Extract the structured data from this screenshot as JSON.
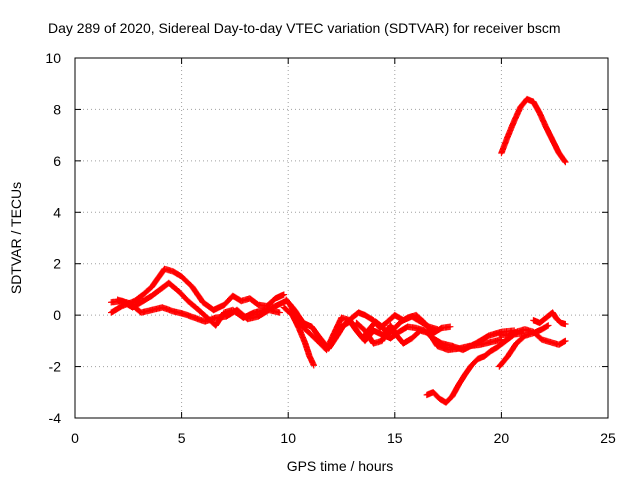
{
  "chart_data": {
    "type": "scatter",
    "title": "Day 289 of 2020, Sidereal Day-to-day VTEC variation (SDTVAR) for receiver bscm",
    "xlabel": "GPS time / hours",
    "ylabel": "SDTVAR / TECUs",
    "xlim": [
      0,
      25
    ],
    "ylim": [
      -4,
      10
    ],
    "grid": true,
    "xticks": [
      0,
      5,
      10,
      15,
      20,
      25
    ],
    "xtick_labels": [
      "0",
      "5",
      "10",
      "15",
      "20",
      "25"
    ],
    "yticks": [
      -4,
      -2,
      0,
      2,
      4,
      6,
      8,
      10
    ],
    "ytick_labels": [
      "-4",
      "-2",
      "0",
      "2",
      "4",
      "6",
      "8",
      "10"
    ],
    "marker": "+",
    "color": "#ff0000",
    "series": [
      {
        "name": "track-1",
        "points": [
          [
            1.7,
            0.1
          ],
          [
            2.2,
            0.35
          ],
          [
            2.8,
            0.55
          ],
          [
            3.2,
            0.8
          ],
          [
            3.6,
            1.1
          ],
          [
            3.9,
            1.45
          ],
          [
            4.2,
            1.8
          ],
          [
            4.6,
            1.7
          ],
          [
            5.0,
            1.5
          ],
          [
            5.5,
            1.1
          ],
          [
            6.0,
            0.5
          ],
          [
            6.5,
            0.2
          ],
          [
            7.0,
            0.4
          ],
          [
            7.4,
            0.75
          ],
          [
            7.8,
            0.55
          ],
          [
            8.2,
            0.65
          ],
          [
            8.6,
            0.4
          ],
          [
            9.0,
            0.35
          ],
          [
            9.4,
            0.65
          ],
          [
            9.8,
            0.8
          ]
        ]
      },
      {
        "name": "track-2",
        "points": [
          [
            1.7,
            0.5
          ],
          [
            2.2,
            0.55
          ],
          [
            2.7,
            0.3
          ],
          [
            3.2,
            0.55
          ],
          [
            3.6,
            0.75
          ],
          [
            4.0,
            1.0
          ],
          [
            4.4,
            1.25
          ],
          [
            4.9,
            0.9
          ],
          [
            5.3,
            0.55
          ],
          [
            5.8,
            0.2
          ],
          [
            6.2,
            -0.1
          ],
          [
            6.6,
            -0.4
          ],
          [
            7.0,
            0.1
          ],
          [
            7.4,
            0.2
          ],
          [
            7.9,
            -0.1
          ],
          [
            8.4,
            0.1
          ],
          [
            8.9,
            0.2
          ],
          [
            9.4,
            0.35
          ],
          [
            9.9,
            0.55
          ]
        ]
      },
      {
        "name": "track-3",
        "points": [
          [
            2.0,
            0.6
          ],
          [
            2.6,
            0.45
          ],
          [
            3.1,
            0.1
          ],
          [
            3.6,
            0.2
          ],
          [
            4.1,
            0.3
          ],
          [
            4.6,
            0.15
          ],
          [
            5.1,
            0.05
          ],
          [
            5.6,
            -0.1
          ],
          [
            6.1,
            -0.25
          ],
          [
            6.6,
            -0.1
          ],
          [
            7.1,
            -0.05
          ],
          [
            7.6,
            0.2
          ],
          [
            8.1,
            -0.15
          ],
          [
            8.6,
            -0.05
          ],
          [
            9.1,
            0.2
          ],
          [
            9.6,
            0.1
          ]
        ]
      },
      {
        "name": "track-4",
        "points": [
          [
            9.8,
            0.3
          ],
          [
            10.2,
            0.0
          ],
          [
            10.5,
            -0.5
          ],
          [
            10.8,
            -1.1
          ],
          [
            11.0,
            -1.6
          ],
          [
            11.2,
            -1.95
          ]
        ]
      },
      {
        "name": "track-5",
        "points": [
          [
            9.9,
            0.6
          ],
          [
            10.3,
            0.2
          ],
          [
            10.7,
            -0.3
          ],
          [
            11.1,
            -0.45
          ],
          [
            11.5,
            -0.9
          ],
          [
            11.9,
            -1.3
          ],
          [
            12.3,
            -0.8
          ],
          [
            12.6,
            -0.4
          ],
          [
            12.9,
            -0.25
          ],
          [
            13.2,
            -0.6
          ],
          [
            13.5,
            -0.9
          ],
          [
            13.8,
            -0.55
          ],
          [
            14.1,
            -0.25
          ],
          [
            14.4,
            -0.45
          ],
          [
            14.7,
            -0.75
          ],
          [
            15.0,
            -0.5
          ],
          [
            15.3,
            -0.25
          ],
          [
            15.6,
            -0.1
          ],
          [
            16.0,
            0.0
          ],
          [
            16.4,
            -0.3
          ],
          [
            16.8,
            -0.7
          ],
          [
            17.2,
            -0.5
          ],
          [
            17.6,
            -0.45
          ]
        ]
      },
      {
        "name": "track-6",
        "points": [
          [
            10.1,
            0.4
          ],
          [
            10.6,
            -0.4
          ],
          [
            11.0,
            -0.7
          ],
          [
            11.5,
            -1.1
          ],
          [
            11.8,
            -1.35
          ],
          [
            12.1,
            -0.8
          ],
          [
            12.5,
            -0.1
          ],
          [
            12.9,
            -0.2
          ],
          [
            13.3,
            -0.7
          ],
          [
            13.6,
            -1.0
          ],
          [
            14.0,
            -0.6
          ],
          [
            14.4,
            -0.75
          ],
          [
            14.8,
            -0.9
          ],
          [
            15.2,
            -0.65
          ],
          [
            15.6,
            -0.45
          ],
          [
            16.0,
            -0.5
          ],
          [
            16.4,
            -0.6
          ],
          [
            16.8,
            -0.9
          ],
          [
            17.2,
            -1.1
          ],
          [
            17.7,
            -1.2
          ],
          [
            18.2,
            -1.35
          ],
          [
            18.8,
            -1.1
          ],
          [
            19.4,
            -0.8
          ],
          [
            20.0,
            -0.65
          ],
          [
            20.6,
            -0.6
          ]
        ]
      },
      {
        "name": "track-7",
        "points": [
          [
            12.0,
            -1.1
          ],
          [
            12.3,
            -0.6
          ],
          [
            12.6,
            -0.4
          ],
          [
            13.0,
            -0.1
          ],
          [
            13.3,
            0.1
          ],
          [
            13.6,
            0.0
          ],
          [
            14.0,
            -0.2
          ],
          [
            14.3,
            -0.5
          ],
          [
            14.6,
            -0.3
          ],
          [
            15.0,
            0.0
          ],
          [
            15.4,
            -0.2
          ],
          [
            15.8,
            -0.05
          ],
          [
            16.2,
            -0.25
          ],
          [
            16.6,
            -0.45
          ],
          [
            17.0,
            -0.55
          ]
        ]
      },
      {
        "name": "track-8",
        "points": [
          [
            13.2,
            -0.3
          ],
          [
            13.6,
            -0.6
          ],
          [
            14.0,
            -1.1
          ],
          [
            14.4,
            -1.0
          ],
          [
            14.8,
            -0.4
          ],
          [
            15.1,
            -0.8
          ],
          [
            15.4,
            -1.1
          ],
          [
            15.8,
            -0.9
          ],
          [
            16.2,
            -0.6
          ],
          [
            16.6,
            -0.7
          ],
          [
            17.0,
            -1.2
          ],
          [
            17.5,
            -1.35
          ],
          [
            18.0,
            -1.3
          ],
          [
            18.5,
            -1.2
          ],
          [
            19.0,
            -1.15
          ],
          [
            19.5,
            -1.05
          ],
          [
            20.0,
            -0.95
          ]
        ]
      },
      {
        "name": "track-9",
        "points": [
          [
            16.5,
            -3.1
          ],
          [
            16.8,
            -3.0
          ],
          [
            17.1,
            -3.25
          ],
          [
            17.4,
            -3.4
          ],
          [
            17.7,
            -3.15
          ],
          [
            18.0,
            -2.7
          ],
          [
            18.3,
            -2.3
          ],
          [
            18.6,
            -1.95
          ],
          [
            18.9,
            -1.7
          ],
          [
            19.2,
            -1.6
          ],
          [
            19.5,
            -1.4
          ],
          [
            19.8,
            -1.25
          ],
          [
            20.2,
            -1.0
          ],
          [
            20.6,
            -0.75
          ],
          [
            21.0,
            -0.7
          ]
        ]
      },
      {
        "name": "track-10",
        "points": [
          [
            19.9,
            -2.0
          ],
          [
            20.3,
            -1.6
          ],
          [
            20.7,
            -1.1
          ],
          [
            21.1,
            -0.8
          ],
          [
            21.5,
            -0.7
          ],
          [
            21.9,
            -0.55
          ],
          [
            22.2,
            -0.4
          ]
        ]
      },
      {
        "name": "track-11",
        "points": [
          [
            19.9,
            -0.75
          ],
          [
            20.3,
            -0.8
          ],
          [
            20.7,
            -0.65
          ],
          [
            21.1,
            -0.55
          ],
          [
            21.5,
            -0.65
          ],
          [
            21.9,
            -0.95
          ],
          [
            22.3,
            -1.05
          ],
          [
            22.7,
            -1.15
          ],
          [
            23.0,
            -1.0
          ]
        ]
      },
      {
        "name": "track-12",
        "points": [
          [
            21.5,
            -0.2
          ],
          [
            21.8,
            -0.3
          ],
          [
            22.1,
            -0.1
          ],
          [
            22.4,
            0.1
          ],
          [
            22.6,
            -0.15
          ],
          [
            22.8,
            -0.3
          ],
          [
            23.0,
            -0.35
          ]
        ]
      },
      {
        "name": "track-13",
        "points": [
          [
            20.0,
            6.3
          ],
          [
            20.3,
            6.95
          ],
          [
            20.6,
            7.55
          ],
          [
            20.9,
            8.1
          ],
          [
            21.2,
            8.4
          ],
          [
            21.5,
            8.3
          ],
          [
            21.8,
            7.85
          ],
          [
            22.1,
            7.3
          ],
          [
            22.4,
            6.8
          ],
          [
            22.7,
            6.3
          ],
          [
            23.0,
            5.95
          ]
        ]
      }
    ]
  }
}
